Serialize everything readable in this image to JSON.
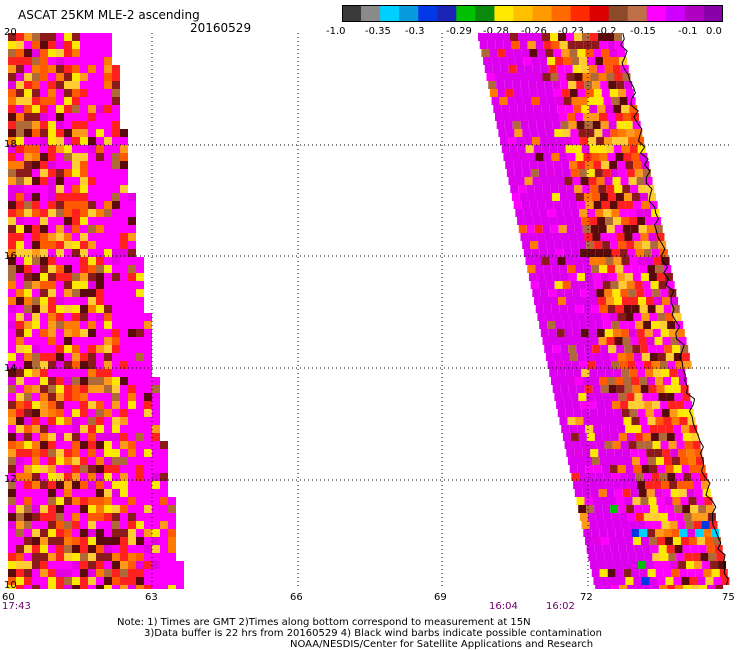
{
  "header": {
    "title": "ASCAT 25KM MLE-2 ascending",
    "date": "20160529"
  },
  "colorbar": {
    "colors": [
      "#3a3a3a",
      "#8a8a8a",
      "#00d0ff",
      "#0a9bdd",
      "#0038e6",
      "#1a25b5",
      "#00c000",
      "#0a8a0a",
      "#ffe800",
      "#ffc000",
      "#ff9a00",
      "#ff6a00",
      "#ff2a00",
      "#dd0000",
      "#8b4a2a",
      "#c07048",
      "#ff00ff",
      "#d000ff",
      "#b000c0",
      "#8a00a8"
    ],
    "ticks": [
      "-1.0",
      "-0.35",
      "-0.3",
      "-0.29",
      "-0.28",
      "-0.26",
      "-0.23",
      "-0.2",
      "-0.15",
      "-0.1",
      "0.0"
    ]
  },
  "map": {
    "lat_labels": [
      "20",
      "18",
      "16",
      "14",
      "12",
      "10"
    ],
    "lon_labels": [
      "60",
      "63",
      "66",
      "69",
      "72",
      "75"
    ],
    "time_labels": {
      "left": "17:43",
      "mid_a": "16:04",
      "mid_b": "16:02"
    },
    "swath_palette": [
      "#ff00ff",
      "#ff00ff",
      "#ff00ff",
      "#e300e3",
      "#ff2020",
      "#ff2020",
      "#ff5a00",
      "#ff7a00",
      "#ff9a1a",
      "#8b1a1a",
      "#5a0a0a",
      "#ffcc33",
      "#ffe800",
      "#b06a3a"
    ]
  },
  "footer": {
    "note_line1": "Note: 1) Times are GMT 2)Times along bottom correspond to measurement at 15N",
    "note_line2": "3)Data buffer is 22 hrs from 20160529 4) Black wind barbs indicate possible contamination",
    "note_line3": "NOAA/NESDIS/Center for Satellite Applications and Research"
  }
}
